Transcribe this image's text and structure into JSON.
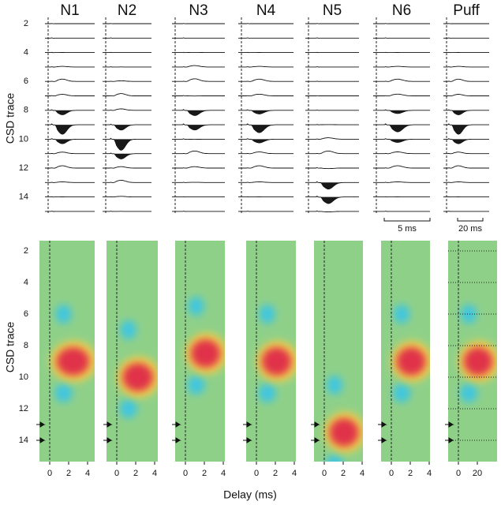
{
  "columns": [
    "N1",
    "N2",
    "N3",
    "N4",
    "N5",
    "N6",
    "Puff"
  ],
  "top_axis_label": "CSD trace",
  "top_yticks": [
    2,
    4,
    6,
    8,
    10,
    12,
    14
  ],
  "scale_bars": [
    "5 ms",
    "20 ms"
  ],
  "bottom_axis_label": "CSD trace",
  "bottom_yticks": [
    2,
    4,
    6,
    8,
    10,
    12,
    14
  ],
  "xticks": [
    0,
    2,
    4
  ],
  "puff_xticks": [
    0,
    20
  ],
  "x_label": "Delay (ms)"
}
